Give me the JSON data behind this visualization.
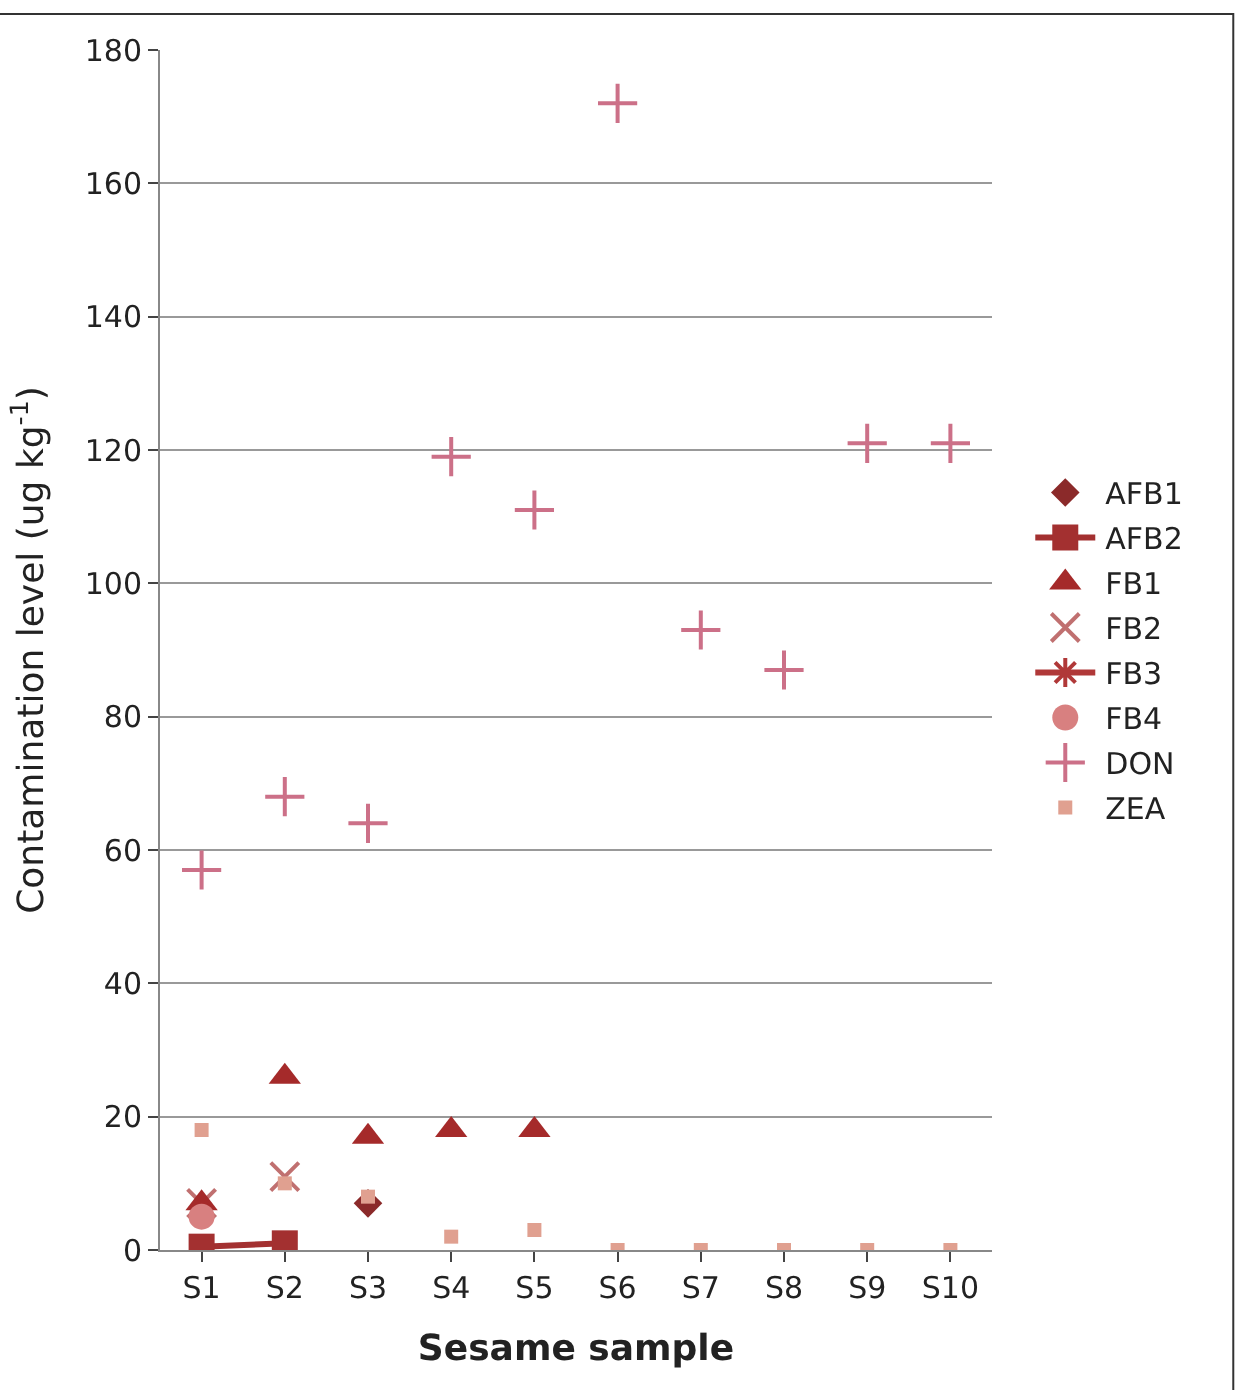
{
  "chart_data": {
    "type": "scatter",
    "xlabel": "Sesame sample",
    "ylabel": "Contamination level (ug kg$^{-1}$)",
    "categories": [
      "S1",
      "S2",
      "S3",
      "S4",
      "S5",
      "S6",
      "S7",
      "S8",
      "S9",
      "S10"
    ],
    "ylim": [
      0,
      180
    ],
    "yticks": [
      0,
      20,
      40,
      60,
      80,
      100,
      120,
      140,
      160,
      180
    ],
    "grid": "y",
    "legend": "right",
    "series": [
      {
        "name": "AFB1",
        "marker": "diamond",
        "color": "#8b2a2a",
        "values": [
          null,
          null,
          7,
          null,
          null,
          null,
          null,
          null,
          null,
          null
        ]
      },
      {
        "name": "AFB2",
        "type": "line",
        "marker": "square",
        "color": "#a33030",
        "values": [
          0.5,
          1,
          null,
          null,
          null,
          null,
          null,
          null,
          null,
          null
        ]
      },
      {
        "name": "FB1",
        "marker": "triangle",
        "color": "#a52a2a",
        "values": [
          7,
          26,
          17,
          18,
          18,
          null,
          null,
          null,
          null,
          null
        ]
      },
      {
        "name": "FB2",
        "marker": "x",
        "color": "#c07070",
        "values": [
          7,
          11,
          null,
          null,
          null,
          null,
          null,
          null,
          null,
          null
        ]
      },
      {
        "name": "FB3",
        "type": "line",
        "marker": "star",
        "color": "#b03838",
        "values": [
          null,
          null,
          null,
          null,
          null,
          null,
          null,
          null,
          null,
          null
        ]
      },
      {
        "name": "FB4",
        "marker": "circle",
        "color": "#d88080",
        "values": [
          5,
          null,
          null,
          null,
          null,
          null,
          null,
          null,
          null,
          null
        ]
      },
      {
        "name": "DON",
        "marker": "cross",
        "color": "#cc7088",
        "values": [
          57,
          68,
          64,
          119,
          111,
          172,
          93,
          87,
          121,
          121
        ]
      },
      {
        "name": "ZEA",
        "marker": "square",
        "color": "#e0a090",
        "values": [
          18,
          10,
          8,
          2,
          3,
          0,
          0,
          0,
          0,
          0
        ]
      }
    ]
  }
}
